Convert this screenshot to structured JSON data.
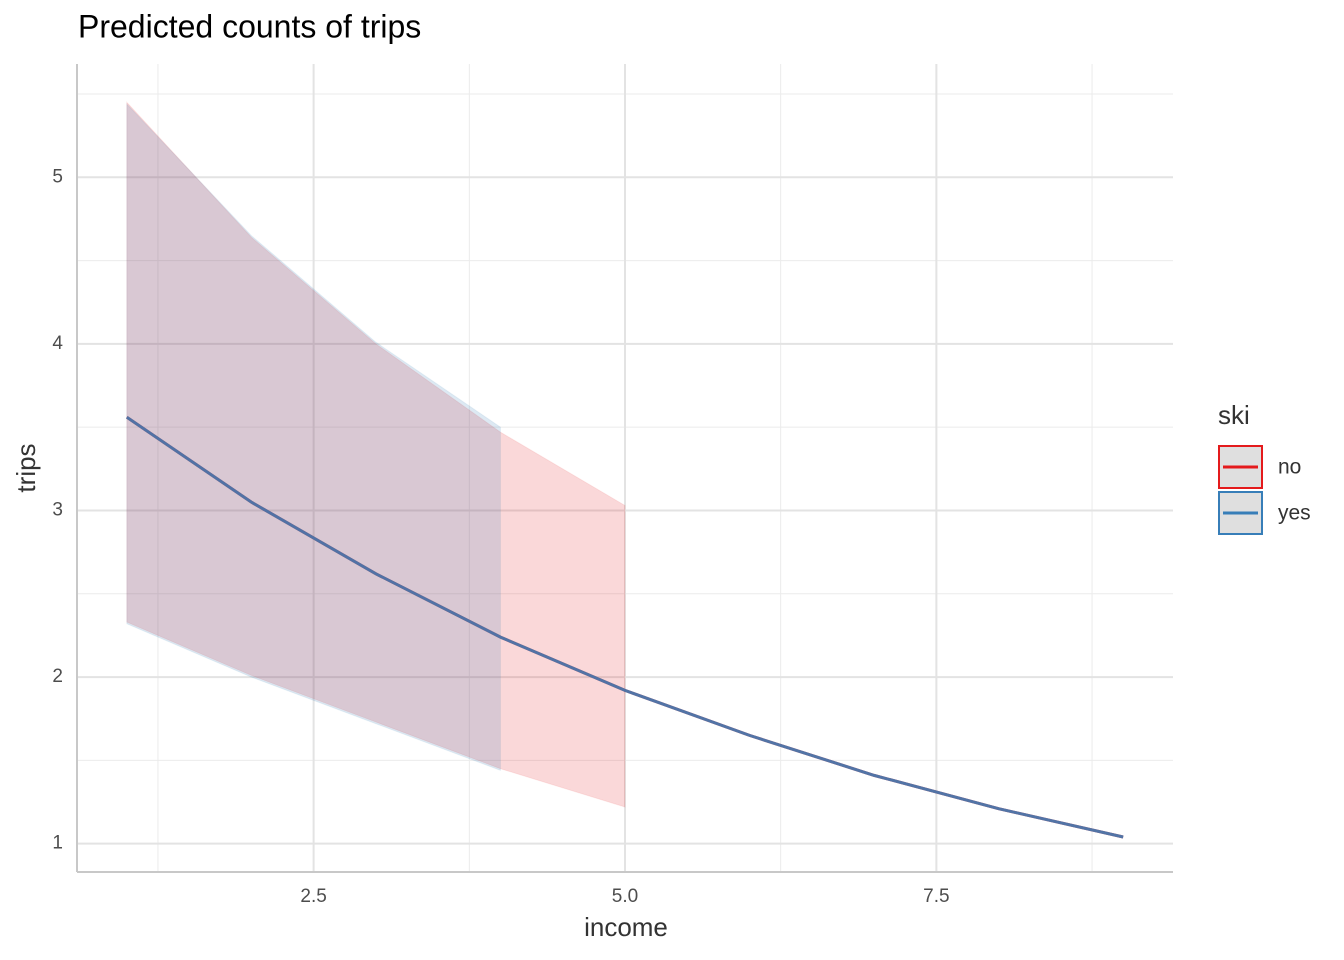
{
  "chart_data": {
    "type": "line",
    "title": "Predicted counts of trips",
    "x_label": "income",
    "y_label": "trips",
    "legend_title": "ski",
    "legend_position": "right",
    "series": [
      {
        "name": "no",
        "color": "#e41a1c",
        "x": [
          1,
          2,
          3,
          4,
          5,
          6,
          7,
          8,
          9
        ],
        "values": [
          3.56,
          3.05,
          2.62,
          2.24,
          1.92,
          1.65,
          1.41,
          1.21,
          1.04
        ],
        "upper": [
          5.45,
          4.64,
          4.0,
          3.47,
          3.03,
          null,
          null,
          null,
          null
        ],
        "lower": [
          2.33,
          2.01,
          1.73,
          1.45,
          1.22,
          null,
          null,
          null,
          null
        ]
      },
      {
        "name": "yes",
        "color": "#377eb8",
        "x": [
          1,
          2,
          3,
          4,
          5,
          6,
          7,
          8,
          9
        ],
        "values": [
          3.56,
          3.05,
          2.62,
          2.24,
          1.92,
          1.65,
          1.41,
          1.21,
          1.04
        ],
        "upper": [
          5.44,
          4.65,
          4.01,
          3.5,
          null,
          null,
          null,
          null,
          null
        ],
        "lower": [
          2.32,
          2.0,
          1.72,
          1.44,
          null,
          null,
          null,
          null,
          null
        ]
      }
    ],
    "ribbon_opacity": 0.17,
    "xlim": [
      0.6,
      9.4
    ],
    "ylim": [
      0.83,
      5.68
    ],
    "xticks": [
      2.5,
      {
        "value": 5,
        "label": "5.0"
      },
      7.5
    ],
    "yticks": [
      1,
      2,
      3,
      4,
      5
    ],
    "x_minor_grid": [
      1.25,
      3.75,
      6.25,
      8.75
    ],
    "y_minor_grid": [
      1.5,
      2.5,
      3.5,
      4.5,
      5.5
    ],
    "grid": true
  }
}
